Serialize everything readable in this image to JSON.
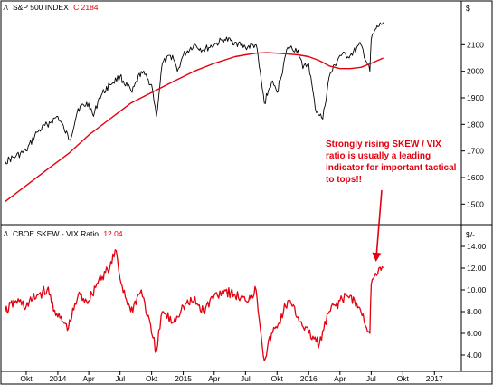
{
  "chart_data": [
    {
      "type": "line",
      "legend": "S&P 500 INDEX",
      "last_value": "C 2184",
      "unit_label": "$",
      "ylim": [
        1450,
        2200
      ],
      "yticks": [
        1500,
        1600,
        1700,
        1800,
        1900,
        2000,
        2100
      ],
      "grid": false,
      "series": [
        {
          "role": "price",
          "color": "#000000",
          "x": [
            "2013-08-01",
            "2013-09-01",
            "2013-10-01",
            "2013-11-01",
            "2013-12-01",
            "2014-01-01",
            "2014-01-20",
            "2014-02-05",
            "2014-03-01",
            "2014-04-01",
            "2014-04-15",
            "2014-05-01",
            "2014-06-01",
            "2014-07-01",
            "2014-08-05",
            "2014-09-01",
            "2014-10-01",
            "2014-10-15",
            "2014-11-01",
            "2014-12-01",
            "2014-12-15",
            "2015-01-01",
            "2015-02-01",
            "2015-03-01",
            "2015-04-01",
            "2015-05-01",
            "2015-06-01",
            "2015-07-01",
            "2015-08-01",
            "2015-08-25",
            "2015-09-15",
            "2015-10-01",
            "2015-11-01",
            "2015-12-01",
            "2015-12-15",
            "2016-01-01",
            "2016-01-20",
            "2016-02-11",
            "2016-03-01",
            "2016-04-01",
            "2016-05-01",
            "2016-06-01",
            "2016-06-27",
            "2016-07-01",
            "2016-07-15",
            "2016-08-05"
          ],
          "y": [
            1660,
            1680,
            1700,
            1770,
            1800,
            1830,
            1780,
            1740,
            1860,
            1880,
            1830,
            1900,
            1950,
            1980,
            1920,
            2000,
            1950,
            1830,
            2030,
            2060,
            2000,
            2060,
            2100,
            2080,
            2100,
            2120,
            2110,
            2090,
            2100,
            1880,
            1960,
            1920,
            2090,
            2080,
            2010,
            2030,
            1860,
            1820,
            1980,
            2060,
            2060,
            2100,
            2000,
            2120,
            2160,
            2184
          ]
        },
        {
          "role": "moving-average",
          "color": "#e3000f",
          "x": [
            "2013-08-01",
            "2013-10-01",
            "2013-12-01",
            "2014-02-01",
            "2014-04-01",
            "2014-06-01",
            "2014-08-01",
            "2014-10-01",
            "2014-12-01",
            "2015-02-01",
            "2015-04-01",
            "2015-06-01",
            "2015-07-01",
            "2015-08-01",
            "2015-09-01",
            "2015-10-01",
            "2015-11-01",
            "2015-12-01",
            "2016-01-01",
            "2016-02-01",
            "2016-03-01",
            "2016-04-01",
            "2016-05-01",
            "2016-06-01",
            "2016-07-01",
            "2016-08-05"
          ],
          "y": [
            1510,
            1570,
            1630,
            1690,
            1760,
            1820,
            1880,
            1920,
            1960,
            2000,
            2030,
            2055,
            2062,
            2068,
            2070,
            2068,
            2065,
            2062,
            2055,
            2040,
            2020,
            2010,
            2010,
            2015,
            2030,
            2050
          ]
        }
      ]
    },
    {
      "type": "line",
      "legend": "CBOE SKEW - VIX Ratio",
      "last_value": "12.04",
      "unit_label": "$/-",
      "ylim": [
        3.0,
        14.5
      ],
      "yticks": [
        "4.00",
        "6.00",
        "8.00",
        "10.00",
        "12.00",
        "14.00"
      ],
      "grid": false,
      "series": [
        {
          "role": "ratio",
          "color": "#e3000f",
          "x": [
            "2013-08-01",
            "2013-09-01",
            "2013-10-01",
            "2013-11-01",
            "2013-12-01",
            "2014-01-01",
            "2014-02-01",
            "2014-03-01",
            "2014-04-01",
            "2014-05-01",
            "2014-06-01",
            "2014-06-20",
            "2014-07-01",
            "2014-08-01",
            "2014-09-01",
            "2014-10-01",
            "2014-10-15",
            "2014-11-01",
            "2014-12-01",
            "2015-01-01",
            "2015-02-01",
            "2015-03-01",
            "2015-04-01",
            "2015-05-01",
            "2015-06-01",
            "2015-07-01",
            "2015-08-01",
            "2015-08-25",
            "2015-09-15",
            "2015-10-01",
            "2015-11-01",
            "2015-12-01",
            "2016-01-01",
            "2016-02-01",
            "2016-03-01",
            "2016-04-01",
            "2016-05-01",
            "2016-06-01",
            "2016-06-27",
            "2016-07-01",
            "2016-07-20",
            "2016-08-05"
          ],
          "y": [
            8.0,
            9.0,
            8.5,
            9.5,
            10.0,
            7.5,
            6.5,
            9.5,
            9.0,
            11.0,
            12.0,
            13.6,
            11.0,
            8.0,
            10.0,
            6.0,
            4.3,
            8.0,
            7.0,
            8.5,
            9.0,
            8.0,
            9.5,
            10.0,
            9.5,
            9.0,
            10.0,
            3.5,
            6.0,
            6.5,
            9.0,
            7.5,
            6.0,
            5.0,
            8.0,
            9.0,
            9.5,
            8.0,
            6.0,
            10.5,
            11.5,
            12.04
          ]
        }
      ]
    }
  ],
  "x_axis": {
    "ticks": [
      {
        "label": "Okt",
        "date": "2013-10-01"
      },
      {
        "label": "2014",
        "date": "2014-01-01"
      },
      {
        "label": "Apr",
        "date": "2014-04-01"
      },
      {
        "label": "Jul",
        "date": "2014-07-01"
      },
      {
        "label": "Okt",
        "date": "2014-10-01"
      },
      {
        "label": "2015",
        "date": "2015-01-01"
      },
      {
        "label": "Apr",
        "date": "2015-04-01"
      },
      {
        "label": "Jul",
        "date": "2015-07-01"
      },
      {
        "label": "Okt",
        "date": "2015-10-01"
      },
      {
        "label": "2016",
        "date": "2016-01-01"
      },
      {
        "label": "Apr",
        "date": "2016-04-01"
      },
      {
        "label": "Jul",
        "date": "2016-07-01"
      },
      {
        "label": "Okt",
        "date": "2016-10-01"
      },
      {
        "label": "2017",
        "date": "2017-01-01"
      }
    ],
    "range": [
      "2013-07-22",
      "2017-03-15"
    ]
  },
  "annotation": {
    "lines": [
      "Strongly rising SKEW / VIX",
      "ratio is usually a leading",
      "indicator for important tactical",
      "to tops!!"
    ],
    "color": "#e3000f"
  },
  "colors": {
    "axis": "#000000",
    "price": "#000000",
    "accent": "#e3000f"
  }
}
